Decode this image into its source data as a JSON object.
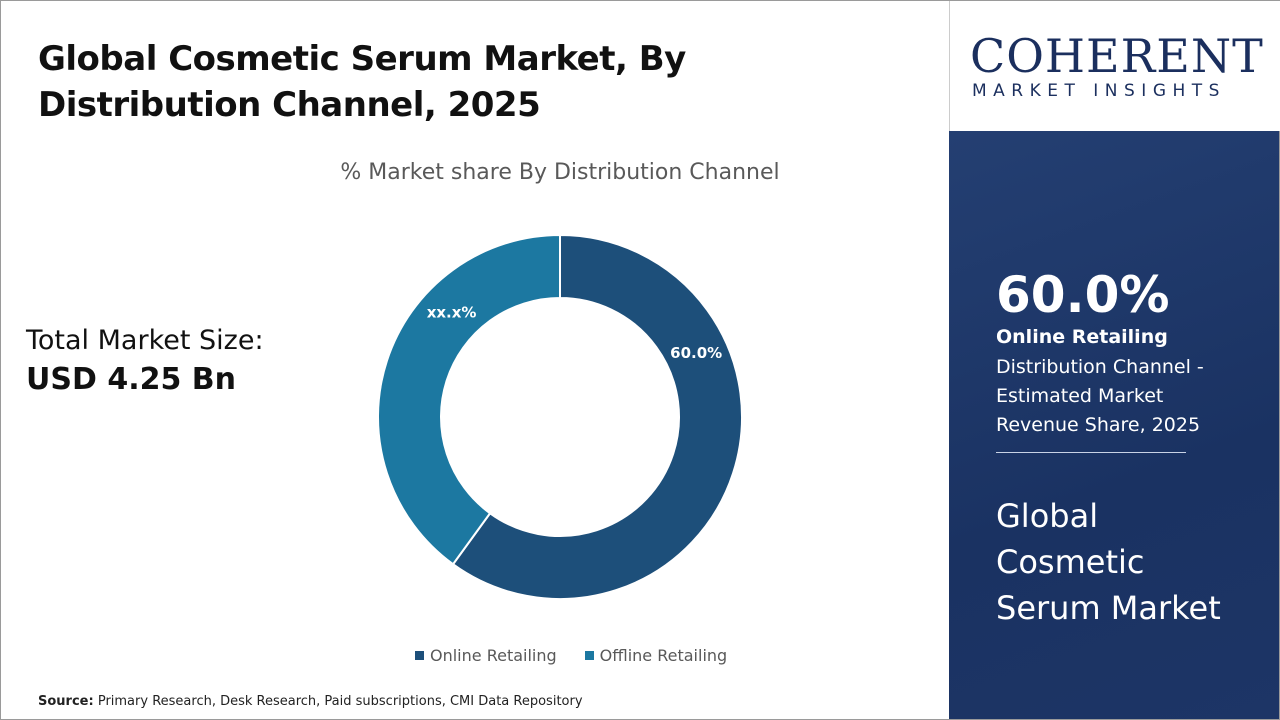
{
  "header": {
    "title": "Global Cosmetic Serum Market, By Distribution Channel, 2025"
  },
  "summary": {
    "total_label": "Total Market Size:",
    "total_value": "USD 4.25 Bn"
  },
  "chart_data": {
    "type": "pie",
    "subtype": "donut",
    "title": "% Market share By Distribution Channel",
    "categories": [
      "Online Retailing",
      "Offline Retailing"
    ],
    "values": [
      60.0,
      40.0
    ],
    "data_labels": [
      "60.0%",
      "xx.x%"
    ],
    "colors": [
      "#1d4f7a",
      "#1c78a1"
    ],
    "legend_position": "bottom"
  },
  "legend": {
    "items": [
      "Online Retailing",
      "Offline Retailing"
    ]
  },
  "source": {
    "label": "Source:",
    "text": "Primary Research, Desk Research, Paid subscriptions, CMI Data Repository"
  },
  "logo": {
    "main": "COHERENT",
    "sub": "MARKET INSIGHTS"
  },
  "panel": {
    "highlight_pct": "60.0%",
    "segment_name": "Online Retailing",
    "description": "Distribution Channel - Estimated Market Revenue Share, 2025",
    "market_name": "Global Cosmetic Serum Market"
  }
}
